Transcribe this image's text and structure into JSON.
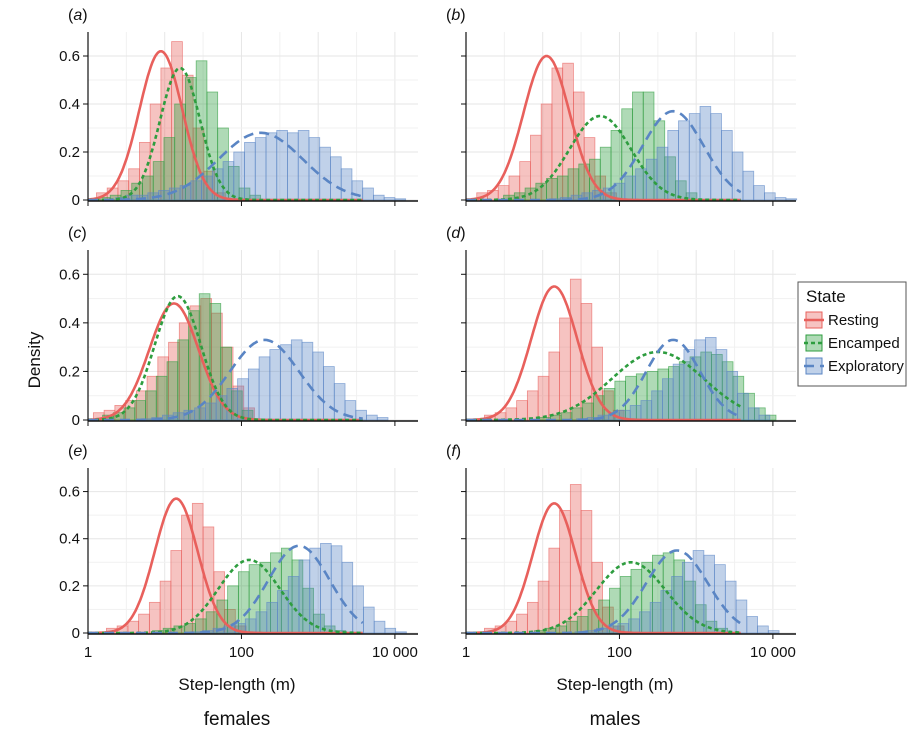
{
  "chart_data": {
    "type": "histogram-with-density",
    "ylabel": "Density",
    "xlabel": "Step-length (m)",
    "x_scale": "log10",
    "xlim": [
      1,
      20000
    ],
    "ylim": [
      0,
      0.7
    ],
    "x_ticks": [
      1,
      100,
      10000
    ],
    "x_tick_labels": [
      "1",
      "100",
      "10 000"
    ],
    "y_ticks": [
      0,
      0.2,
      0.4,
      0.6
    ],
    "y_tick_labels": [
      "0",
      "0.2",
      "0.4",
      "0.6"
    ],
    "grid": true,
    "legend": {
      "title": "State",
      "placement": "right",
      "items": [
        {
          "name": "Resting",
          "color": "#e8605c",
          "dash": "solid"
        },
        {
          "name": "Encamped",
          "color": "#2e9d3f",
          "dash": "dotted"
        },
        {
          "name": "Exploratory",
          "color": "#5a85c4",
          "dash": "dashed"
        }
      ]
    },
    "column_titles": [
      "females",
      "males"
    ],
    "panels": [
      {
        "tag": "a",
        "row": 0,
        "col": 0,
        "series": [
          {
            "name": "Resting",
            "curve": {
              "mean_log10": 0.95,
              "sd_log10": 0.28,
              "peak": 0.62
            },
            "bars": [
              0.03,
              0.05,
              0.08,
              0.13,
              0.24,
              0.4,
              0.55,
              0.66,
              0.52,
              0.3,
              0.12,
              0.03
            ]
          },
          {
            "name": "Encamped",
            "curve": {
              "mean_log10": 1.2,
              "sd_log10": 0.26,
              "peak": 0.55
            },
            "bars": [
              0.01,
              0.02,
              0.04,
              0.07,
              0.1,
              0.16,
              0.26,
              0.4,
              0.51,
              0.58,
              0.45,
              0.3,
              0.14,
              0.05,
              0.02
            ]
          },
          {
            "name": "Exploratory",
            "curve": {
              "mean_log10": 2.25,
              "sd_log10": 0.55,
              "peak": 0.28
            },
            "bars": [
              0.01,
              0.02,
              0.02,
              0.03,
              0.04,
              0.05,
              0.06,
              0.08,
              0.1,
              0.13,
              0.16,
              0.2,
              0.24,
              0.26,
              0.28,
              0.29,
              0.28,
              0.29,
              0.26,
              0.22,
              0.18,
              0.13,
              0.08,
              0.05,
              0.02,
              0.01,
              0.005
            ]
          }
        ]
      },
      {
        "tag": "b",
        "row": 0,
        "col": 1,
        "series": [
          {
            "name": "Resting",
            "curve": {
              "mean_log10": 1.05,
              "sd_log10": 0.3,
              "peak": 0.6
            },
            "bars": [
              0.03,
              0.04,
              0.06,
              0.1,
              0.16,
              0.27,
              0.4,
              0.55,
              0.57,
              0.45,
              0.26,
              0.1,
              0.03
            ]
          },
          {
            "name": "Encamped",
            "curve": {
              "mean_log10": 1.75,
              "sd_log10": 0.4,
              "peak": 0.35
            },
            "bars": [
              0.02,
              0.03,
              0.05,
              0.07,
              0.09,
              0.1,
              0.13,
              0.15,
              0.17,
              0.22,
              0.29,
              0.38,
              0.45,
              0.45,
              0.33,
              0.18,
              0.08,
              0.03
            ]
          },
          {
            "name": "Exploratory",
            "curve": {
              "mean_log10": 2.7,
              "sd_log10": 0.4,
              "peak": 0.37
            },
            "bars": [
              0.005,
              0.01,
              0.02,
              0.03,
              0.04,
              0.05,
              0.07,
              0.1,
              0.13,
              0.17,
              0.22,
              0.29,
              0.33,
              0.36,
              0.39,
              0.36,
              0.29,
              0.2,
              0.12,
              0.06,
              0.03,
              0.01,
              0.005
            ]
          }
        ]
      },
      {
        "tag": "c",
        "row": 1,
        "col": 0,
        "series": [
          {
            "name": "Resting",
            "curve": {
              "mean_log10": 1.12,
              "sd_log10": 0.32,
              "peak": 0.48
            },
            "bars": [
              0.03,
              0.04,
              0.06,
              0.08,
              0.12,
              0.18,
              0.26,
              0.32,
              0.4,
              0.47,
              0.5,
              0.44,
              0.3,
              0.14,
              0.05
            ]
          },
          {
            "name": "Encamped",
            "curve": {
              "mean_log10": 1.17,
              "sd_log10": 0.3,
              "peak": 0.51
            },
            "bars": [
              0.02,
              0.03,
              0.05,
              0.08,
              0.12,
              0.18,
              0.24,
              0.33,
              0.45,
              0.52,
              0.48,
              0.3,
              0.12,
              0.04
            ]
          },
          {
            "name": "Exploratory",
            "curve": {
              "mean_log10": 2.3,
              "sd_log10": 0.45,
              "peak": 0.33
            },
            "bars": [
              0.005,
              0.01,
              0.02,
              0.03,
              0.04,
              0.05,
              0.07,
              0.1,
              0.13,
              0.17,
              0.21,
              0.26,
              0.29,
              0.31,
              0.33,
              0.32,
              0.28,
              0.22,
              0.15,
              0.08,
              0.04,
              0.02,
              0.01
            ]
          }
        ]
      },
      {
        "tag": "d",
        "row": 1,
        "col": 1,
        "series": [
          {
            "name": "Resting",
            "curve": {
              "mean_log10": 1.15,
              "sd_log10": 0.3,
              "peak": 0.55
            },
            "bars": [
              0.02,
              0.03,
              0.05,
              0.08,
              0.12,
              0.18,
              0.28,
              0.42,
              0.58,
              0.48,
              0.3,
              0.12,
              0.04
            ]
          },
          {
            "name": "Encamped",
            "curve": {
              "mean_log10": 2.5,
              "sd_log10": 0.6,
              "peak": 0.28
            },
            "bars": [
              0.01,
              0.02,
              0.03,
              0.05,
              0.07,
              0.1,
              0.13,
              0.16,
              0.18,
              0.19,
              0.2,
              0.21,
              0.22,
              0.24,
              0.26,
              0.28,
              0.27,
              0.24,
              0.18,
              0.11,
              0.05,
              0.02
            ]
          },
          {
            "name": "Exploratory",
            "curve": {
              "mean_log10": 2.7,
              "sd_log10": 0.35,
              "peak": 0.33
            },
            "bars": [
              0.005,
              0.01,
              0.02,
              0.03,
              0.04,
              0.06,
              0.08,
              0.12,
              0.17,
              0.23,
              0.29,
              0.33,
              0.34,
              0.29,
              0.2,
              0.11,
              0.05,
              0.02
            ]
          }
        ]
      },
      {
        "tag": "e",
        "row": 2,
        "col": 0,
        "series": [
          {
            "name": "Resting",
            "curve": {
              "mean_log10": 1.15,
              "sd_log10": 0.28,
              "peak": 0.57
            },
            "bars": [
              0.02,
              0.03,
              0.05,
              0.08,
              0.13,
              0.22,
              0.35,
              0.5,
              0.55,
              0.45,
              0.26,
              0.1,
              0.03
            ]
          },
          {
            "name": "Encamped",
            "curve": {
              "mean_log10": 2.1,
              "sd_log10": 0.4,
              "peak": 0.31
            },
            "bars": [
              0.01,
              0.02,
              0.03,
              0.04,
              0.06,
              0.09,
              0.14,
              0.2,
              0.26,
              0.29,
              0.3,
              0.34,
              0.36,
              0.31,
              0.19,
              0.08,
              0.03,
              0.01
            ]
          },
          {
            "name": "Exploratory",
            "curve": {
              "mean_log10": 2.75,
              "sd_log10": 0.4,
              "peak": 0.37
            },
            "bars": [
              0.005,
              0.01,
              0.02,
              0.03,
              0.04,
              0.06,
              0.09,
              0.13,
              0.18,
              0.24,
              0.31,
              0.36,
              0.38,
              0.37,
              0.3,
              0.2,
              0.11,
              0.05,
              0.02,
              0.005
            ]
          }
        ]
      },
      {
        "tag": "f",
        "row": 2,
        "col": 1,
        "series": [
          {
            "name": "Resting",
            "curve": {
              "mean_log10": 1.15,
              "sd_log10": 0.28,
              "peak": 0.55
            },
            "bars": [
              0.02,
              0.03,
              0.05,
              0.08,
              0.13,
              0.22,
              0.36,
              0.52,
              0.63,
              0.52,
              0.3,
              0.11,
              0.03
            ]
          },
          {
            "name": "Encamped",
            "curve": {
              "mean_log10": 2.15,
              "sd_log10": 0.45,
              "peak": 0.3
            },
            "bars": [
              0.01,
              0.02,
              0.03,
              0.05,
              0.07,
              0.1,
              0.14,
              0.19,
              0.24,
              0.27,
              0.3,
              0.33,
              0.34,
              0.31,
              0.22,
              0.12,
              0.05,
              0.02
            ]
          },
          {
            "name": "Exploratory",
            "curve": {
              "mean_log10": 2.75,
              "sd_log10": 0.4,
              "peak": 0.35
            },
            "bars": [
              0.005,
              0.01,
              0.02,
              0.03,
              0.04,
              0.06,
              0.09,
              0.13,
              0.18,
              0.24,
              0.3,
              0.35,
              0.33,
              0.29,
              0.22,
              0.14,
              0.07,
              0.03,
              0.01
            ]
          }
        ]
      }
    ]
  }
}
